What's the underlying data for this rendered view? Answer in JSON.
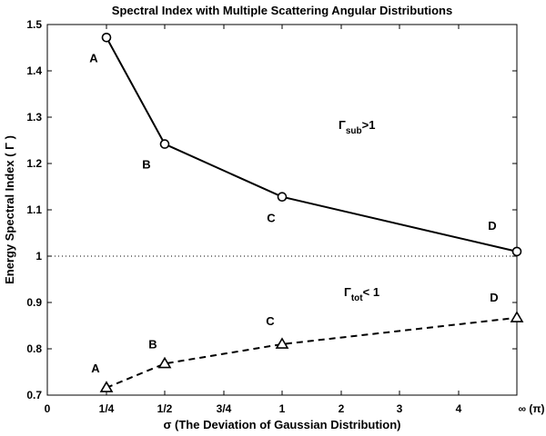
{
  "chart_data": {
    "type": "line",
    "title": "Spectral Index with Multiple Scattering Angular Distributions",
    "xlabel": "σ (The Deviation of Gaussian Distribution)",
    "ylabel": "Energy Spectral Index  ( Γ )",
    "x_ticks": [
      "0",
      "1/4",
      "1/2",
      "3/4",
      "1",
      "2",
      "3",
      "4",
      "∞ (π)"
    ],
    "y_ticks": [
      "0.7",
      "0.8",
      "0.9",
      "1",
      "1.1",
      "1.2",
      "1.3",
      "1.4",
      "1.5"
    ],
    "ylim": [
      0.7,
      1.5
    ],
    "x_categories": [
      "1/4",
      "1/2",
      "1",
      "∞"
    ],
    "series": [
      {
        "values": [
          1.472,
          1.242,
          1.128,
          1.01
        ],
        "point_labels": [
          "A",
          "B",
          "C",
          "D"
        ],
        "marker": "circle",
        "line_style": "solid"
      },
      {
        "values": [
          0.716,
          0.768,
          0.81,
          0.867
        ],
        "point_labels": [
          "A",
          "B",
          "C",
          "D"
        ],
        "marker": "triangle",
        "line_style": "dashed"
      }
    ],
    "reference_line": {
      "y": 1.0,
      "style": "dotted"
    },
    "annotations": [
      {
        "base": "Γ",
        "sub": "sub",
        "rest": ">1"
      },
      {
        "base": "Γ",
        "sub": "tot",
        "rest": "< 1"
      }
    ],
    "grid": false
  }
}
